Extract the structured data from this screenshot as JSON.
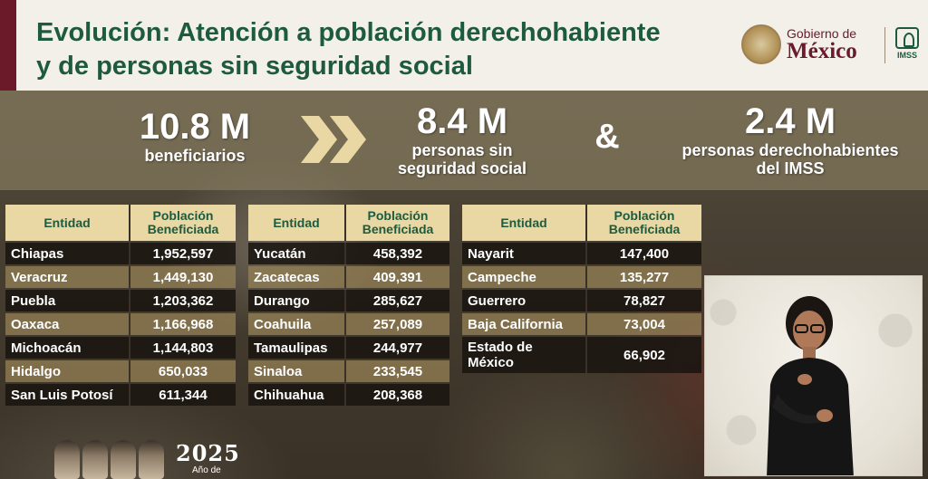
{
  "header": {
    "title_line1": "Evolución: Atención a población derechohabiente",
    "title_line2": "y de personas sin seguridad social",
    "gob_small": "Gobierno de",
    "gob_big": "México",
    "imss": "IMSS",
    "colors": {
      "brand_green": "#1e5b3e",
      "brand_maroon": "#6b1a2a",
      "header_gold": "#e9d7a4"
    }
  },
  "stats": {
    "total_value": "10.8 M",
    "total_label": "beneficiarios",
    "sin_value": "8.4 M",
    "sin_label_1": "personas sin",
    "sin_label_2": "seguridad social",
    "amp": "&",
    "imss_value": "2.4 M",
    "imss_label_1": "personas derechohabientes",
    "imss_label_2": "del IMSS"
  },
  "table_headers": {
    "entidad": "Entidad",
    "poblacion_1": "Población",
    "poblacion_2": "Beneficiada"
  },
  "table1": [
    {
      "entidad": "Chiapas",
      "valor": "1,952,597"
    },
    {
      "entidad": "Veracruz",
      "valor": "1,449,130"
    },
    {
      "entidad": "Puebla",
      "valor": "1,203,362"
    },
    {
      "entidad": "Oaxaca",
      "valor": "1,166,968"
    },
    {
      "entidad": "Michoacán",
      "valor": "1,144,803"
    },
    {
      "entidad": "Hidalgo",
      "valor": "650,033"
    },
    {
      "entidad": "San Luis Potosí",
      "valor": "611,344"
    }
  ],
  "table2": [
    {
      "entidad": "Yucatán",
      "valor": "458,392"
    },
    {
      "entidad": "Zacatecas",
      "valor": "409,391"
    },
    {
      "entidad": "Durango",
      "valor": "285,627"
    },
    {
      "entidad": "Coahuila",
      "valor": "257,089"
    },
    {
      "entidad": "Tamaulipas",
      "valor": "244,977"
    },
    {
      "entidad": "Sinaloa",
      "valor": "233,545"
    },
    {
      "entidad": "Chihuahua",
      "valor": "208,368"
    }
  ],
  "table3": [
    {
      "entidad": "Nayarit",
      "valor": "147,400"
    },
    {
      "entidad": "Campeche",
      "valor": "135,277"
    },
    {
      "entidad": "Guerrero",
      "valor": "78,827"
    },
    {
      "entidad": "Baja California",
      "valor": "73,004"
    },
    {
      "entidad_1": "Estado de",
      "entidad_2": "México",
      "valor": "66,902"
    }
  ],
  "footer": {
    "year": "2025",
    "year_sub": "Año de"
  }
}
